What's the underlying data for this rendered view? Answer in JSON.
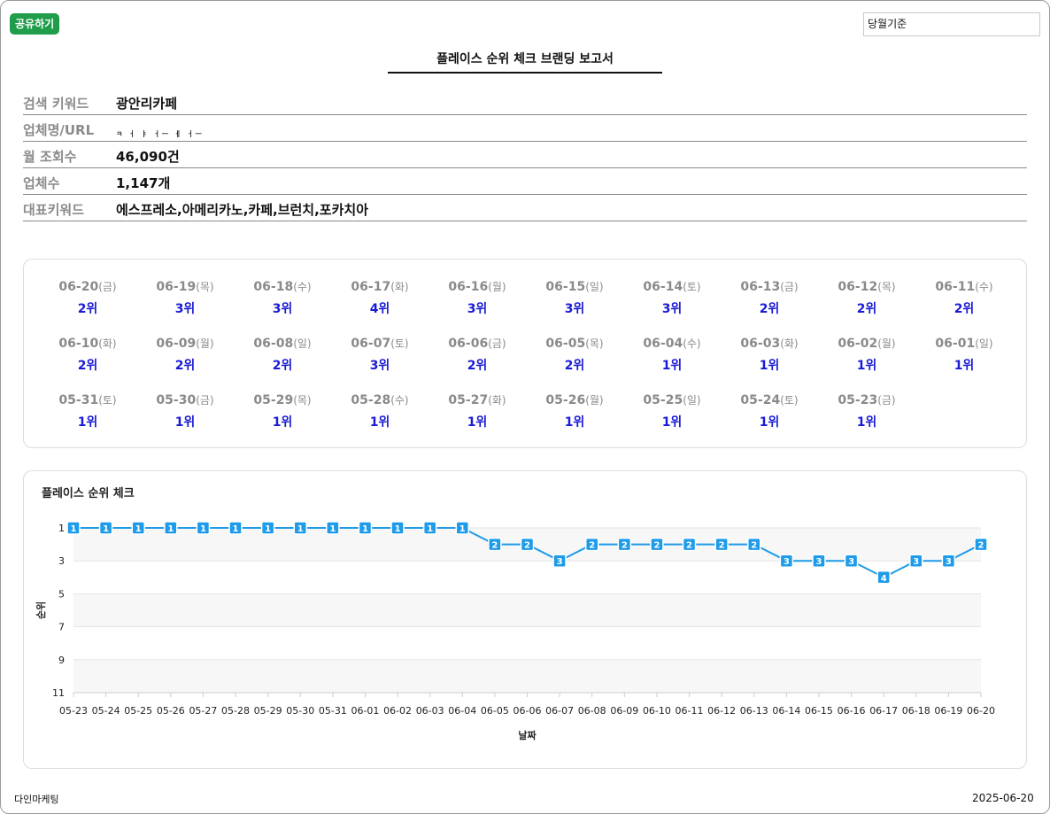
{
  "header": {
    "share_label": "공유하기",
    "period_value": "당월기준",
    "report_title": "플레이스 순위 체크 브랜딩 보고서"
  },
  "info": {
    "rows": [
      {
        "label": "검색 키워드",
        "value": "광안리카페"
      },
      {
        "label": "업체명/URL",
        "value": "ㅋ ㅓ ㅑ ㅓㅡ ㅔ ㅓㅡ"
      },
      {
        "label": "월 조회수",
        "value": "46,090건"
      },
      {
        "label": "업체수",
        "value": "1,147개"
      },
      {
        "label": "대표키워드",
        "value": "에스프레소,아메리카노,카페,브런치,포카치아"
      }
    ]
  },
  "daily_ranks": [
    {
      "date": "06-20",
      "dow": "(금)",
      "rank": "2위"
    },
    {
      "date": "06-19",
      "dow": "(목)",
      "rank": "3위"
    },
    {
      "date": "06-18",
      "dow": "(수)",
      "rank": "3위"
    },
    {
      "date": "06-17",
      "dow": "(화)",
      "rank": "4위"
    },
    {
      "date": "06-16",
      "dow": "(월)",
      "rank": "3위"
    },
    {
      "date": "06-15",
      "dow": "(일)",
      "rank": "3위"
    },
    {
      "date": "06-14",
      "dow": "(토)",
      "rank": "3위"
    },
    {
      "date": "06-13",
      "dow": "(금)",
      "rank": "2위"
    },
    {
      "date": "06-12",
      "dow": "(목)",
      "rank": "2위"
    },
    {
      "date": "06-11",
      "dow": "(수)",
      "rank": "2위"
    },
    {
      "date": "06-10",
      "dow": "(화)",
      "rank": "2위"
    },
    {
      "date": "06-09",
      "dow": "(월)",
      "rank": "2위"
    },
    {
      "date": "06-08",
      "dow": "(일)",
      "rank": "2위"
    },
    {
      "date": "06-07",
      "dow": "(토)",
      "rank": "3위"
    },
    {
      "date": "06-06",
      "dow": "(금)",
      "rank": "2위"
    },
    {
      "date": "06-05",
      "dow": "(목)",
      "rank": "2위"
    },
    {
      "date": "06-04",
      "dow": "(수)",
      "rank": "1위"
    },
    {
      "date": "06-03",
      "dow": "(화)",
      "rank": "1위"
    },
    {
      "date": "06-02",
      "dow": "(월)",
      "rank": "1위"
    },
    {
      "date": "06-01",
      "dow": "(일)",
      "rank": "1위"
    },
    {
      "date": "05-31",
      "dow": "(토)",
      "rank": "1위"
    },
    {
      "date": "05-30",
      "dow": "(금)",
      "rank": "1위"
    },
    {
      "date": "05-29",
      "dow": "(목)",
      "rank": "1위"
    },
    {
      "date": "05-28",
      "dow": "(수)",
      "rank": "1위"
    },
    {
      "date": "05-27",
      "dow": "(화)",
      "rank": "1위"
    },
    {
      "date": "05-26",
      "dow": "(월)",
      "rank": "1위"
    },
    {
      "date": "05-25",
      "dow": "(일)",
      "rank": "1위"
    },
    {
      "date": "05-24",
      "dow": "(토)",
      "rank": "1위"
    },
    {
      "date": "05-23",
      "dow": "(금)",
      "rank": "1위"
    }
  ],
  "chart_data": {
    "type": "line",
    "title": "플레이스 순위 체크",
    "xlabel": "날짜",
    "ylabel": "순위",
    "x": [
      "05-23",
      "05-24",
      "05-25",
      "05-26",
      "05-27",
      "05-28",
      "05-29",
      "05-30",
      "05-31",
      "06-01",
      "06-02",
      "06-03",
      "06-04",
      "06-05",
      "06-06",
      "06-07",
      "06-08",
      "06-09",
      "06-10",
      "06-11",
      "06-12",
      "06-13",
      "06-14",
      "06-15",
      "06-16",
      "06-17",
      "06-18",
      "06-19",
      "06-20"
    ],
    "series": [
      {
        "values": [
          1,
          1,
          1,
          1,
          1,
          1,
          1,
          1,
          1,
          1,
          1,
          1,
          1,
          2,
          2,
          3,
          2,
          2,
          2,
          2,
          2,
          2,
          3,
          3,
          3,
          4,
          3,
          3,
          2
        ]
      }
    ],
    "yticks": [
      1,
      3,
      5,
      7,
      9,
      11
    ],
    "ylim": [
      1,
      11
    ],
    "y_inverted": true,
    "line_color": "#1e9be9",
    "grid": true
  },
  "footer": {
    "company": "다인마케팅",
    "date": "2025-06-20"
  }
}
